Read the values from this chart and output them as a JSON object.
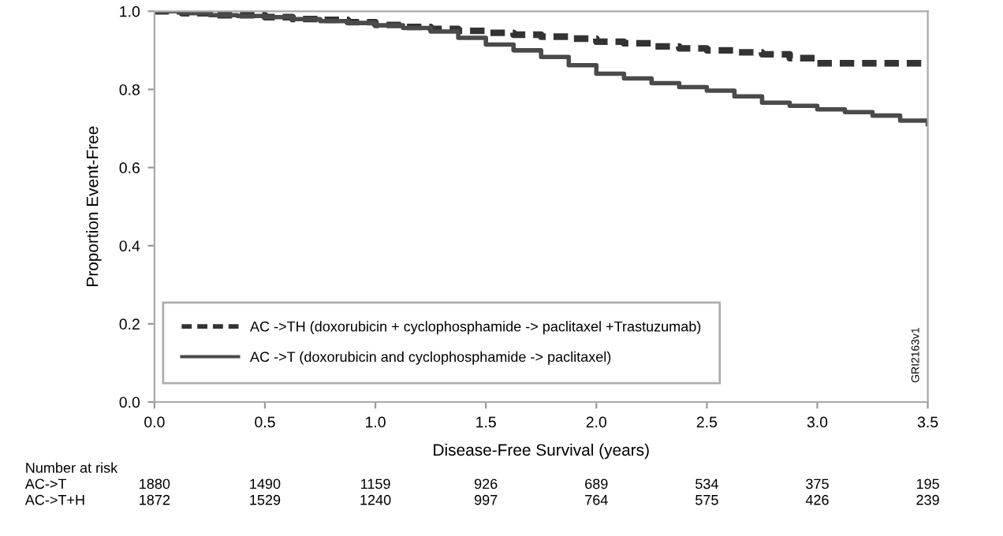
{
  "chart_data": {
    "type": "step",
    "xlabel": "Disease-Free Survival (years)",
    "ylabel": "Proportion Event-Free",
    "xlim": [
      0,
      3.5
    ],
    "xticks": [
      {
        "value": 0,
        "label": "0.0"
      },
      {
        "value": 0.5,
        "label": "0.5"
      },
      {
        "value": 1,
        "label": "1.0"
      },
      {
        "value": 1.5,
        "label": "1.5"
      },
      {
        "value": 2,
        "label": "2.0"
      },
      {
        "value": 2.5,
        "label": "2.5"
      },
      {
        "value": 3,
        "label": "3.0"
      },
      {
        "value": 3.5,
        "label": "3.5"
      }
    ],
    "ylim": [
      0,
      1
    ],
    "yticks": [
      {
        "value": 0,
        "label": "0.0"
      },
      {
        "value": 0.2,
        "label": "0.2"
      },
      {
        "value": 0.4,
        "label": "0.4"
      },
      {
        "value": 0.6,
        "label": "0.6"
      },
      {
        "value": 0.8,
        "label": "0.8"
      },
      {
        "value": 1,
        "label": "1.0"
      }
    ],
    "grid": false,
    "legend": "bottom left",
    "series": [
      {
        "name": "AC ->TH (doxorubicin + cyclophosphamide -> paclitaxel +Trastuzumab)",
        "color": "#333333",
        "line_style": "dashed",
        "x": [
          0,
          0.125,
          0.25,
          0.375,
          0.5,
          0.625,
          0.75,
          0.875,
          1.0,
          1.125,
          1.25,
          1.375,
          1.5,
          1.625,
          1.75,
          1.875,
          2.0,
          2.125,
          2.25,
          2.375,
          2.5,
          2.625,
          2.75,
          2.875,
          3.0,
          3.125,
          3.25,
          3.375,
          3.5
        ],
        "values": [
          1.0,
          0.995,
          0.99,
          0.99,
          0.985,
          0.98,
          0.978,
          0.972,
          0.965,
          0.96,
          0.955,
          0.95,
          0.945,
          0.94,
          0.935,
          0.93,
          0.922,
          0.918,
          0.91,
          0.905,
          0.9,
          0.895,
          0.89,
          0.88,
          0.867,
          0.867,
          0.867,
          0.867,
          0.867
        ]
      },
      {
        "name": "AC ->T (doxorubicin and cyclophosphamide -> paclitaxel)",
        "color": "#4a4a4a",
        "line_style": "solid",
        "x": [
          0,
          0.125,
          0.25,
          0.375,
          0.5,
          0.625,
          0.75,
          0.875,
          1.0,
          1.125,
          1.25,
          1.375,
          1.5,
          1.625,
          1.75,
          1.875,
          2.0,
          2.125,
          2.25,
          2.375,
          2.5,
          2.625,
          2.75,
          2.875,
          3.0,
          3.125,
          3.25,
          3.375,
          3.5
        ],
        "values": [
          1.0,
          0.995,
          0.99,
          0.988,
          0.985,
          0.98,
          0.975,
          0.97,
          0.964,
          0.957,
          0.948,
          0.932,
          0.915,
          0.9,
          0.883,
          0.862,
          0.84,
          0.828,
          0.816,
          0.806,
          0.797,
          0.782,
          0.766,
          0.758,
          0.749,
          0.742,
          0.733,
          0.72,
          0.711
        ]
      }
    ],
    "annotations": [
      "Number at risk",
      "AC->T",
      "1880",
      "1490",
      "1159",
      "926",
      "689",
      "534",
      "375",
      "195",
      "AC->T+H",
      "1872",
      "1529",
      "1240",
      "997",
      "764",
      "575",
      "426",
      "239",
      "GRI2163v1"
    ]
  }
}
